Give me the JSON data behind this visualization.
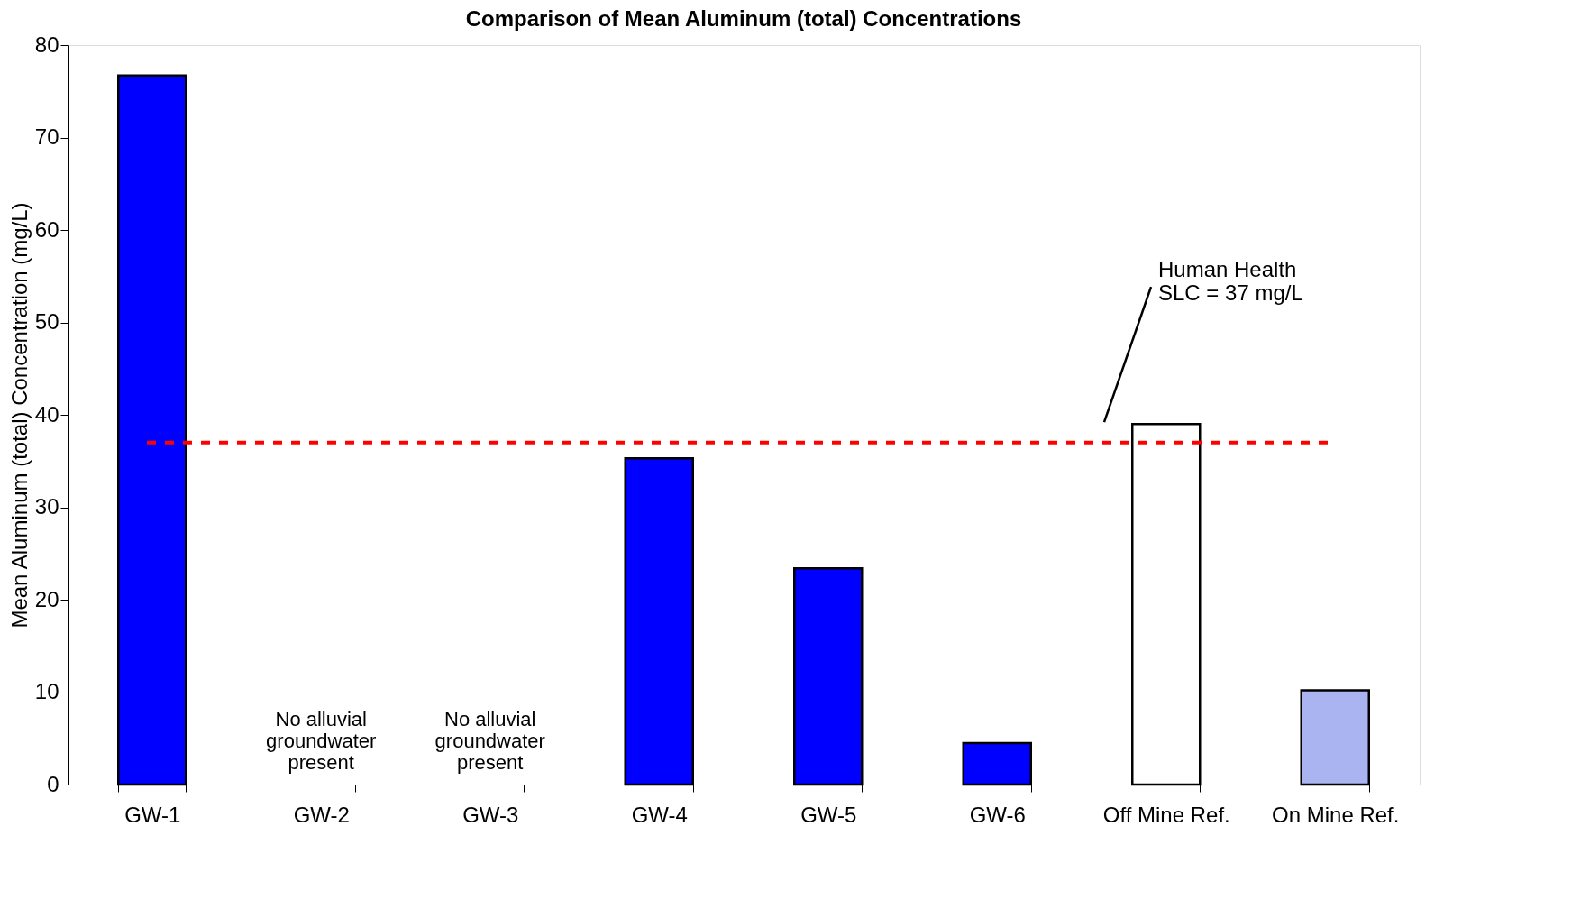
{
  "chart_data": {
    "type": "bar",
    "title": "Comparison of Mean Aluminum (total) Concentrations",
    "ylabel": "Mean Aluminum (total) Concentration (mg/L)",
    "categories": [
      "GW-1",
      "GW-2",
      "GW-3",
      "GW-4",
      "GW-5",
      "GW-6",
      "Off Mine Ref.",
      "On Mine Ref."
    ],
    "values": [
      76.7,
      null,
      null,
      35.3,
      23.4,
      4.5,
      39.0,
      10.2
    ],
    "colors": [
      "#0000ff",
      "#0000ff",
      "#0000ff",
      "#0000ff",
      "#0000ff",
      "#0000ff",
      "#ffffff",
      "#aab4f0"
    ],
    "ylim": [
      0,
      80
    ],
    "yticks": [
      0,
      10,
      20,
      30,
      40,
      50,
      60,
      70,
      80
    ],
    "grid": false,
    "ref_lines": [
      {
        "axis": "y",
        "value": 37,
        "color": "#ff0000",
        "line_style": "dashed"
      }
    ],
    "annotations": [
      "No alluvial\ngroundwater\npresent",
      "No alluvial\ngroundwater\npresent",
      "Human Health\nSLC = 37 mg/L"
    ]
  }
}
